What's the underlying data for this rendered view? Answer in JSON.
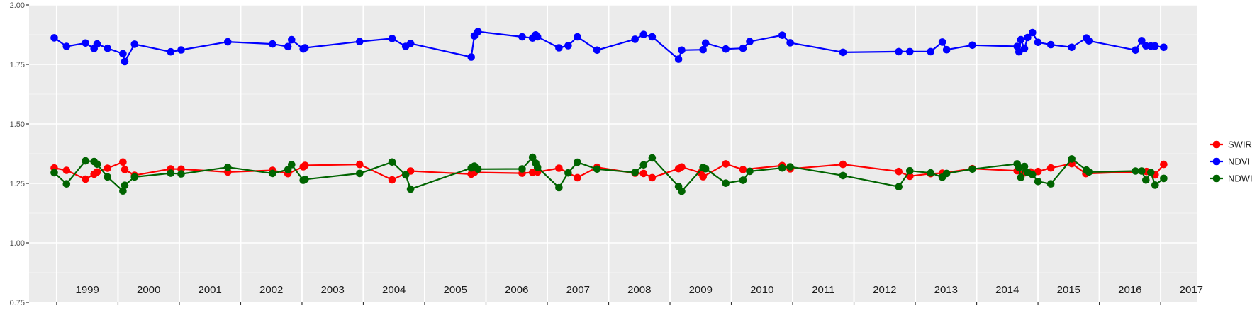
{
  "chart_data": {
    "type": "line",
    "title": "",
    "xlabel": "",
    "ylabel": "",
    "x_range": [
      1998.55,
      2017.6
    ],
    "ylim": [
      0.75,
      2.0
    ],
    "y_ticks": [
      "0.75",
      "1.00",
      "1.25",
      "1.50",
      "1.75",
      "2.00"
    ],
    "y_tick_values": [
      0.75,
      1.0,
      1.25,
      1.5,
      1.75,
      2.0
    ],
    "year_labels": [
      "1999",
      "2000",
      "2001",
      "2002",
      "2003",
      "2004",
      "2005",
      "2006",
      "2007",
      "2008",
      "2009",
      "2010",
      "2011",
      "2012",
      "2013",
      "2014",
      "2015",
      "2016",
      "2017"
    ],
    "grid": true,
    "legend_position": "right",
    "background": "#ebebeb",
    "series": [
      {
        "name": "SWIR",
        "color": "#ff0000",
        "x": [
          1998.96,
          1999.16,
          1999.47,
          1999.61,
          1999.66,
          1999.83,
          2000.08,
          2000.11,
          2000.27,
          2000.86,
          2001.03,
          2001.79,
          2002.52,
          2002.77,
          2003.02,
          2003.05,
          2003.94,
          2004.47,
          2004.77,
          2005.76,
          2005.81,
          2006.59,
          2006.76,
          2006.84,
          2007.19,
          2007.49,
          2007.81,
          2008.43,
          2008.57,
          2008.71,
          2009.14,
          2009.19,
          2009.5,
          2009.54,
          2009.91,
          2010.19,
          2010.83,
          2010.96,
          2011.82,
          2012.73,
          2012.91,
          2013.25,
          2013.44,
          2013.93,
          2014.66,
          2014.78,
          2014.88,
          2015.0,
          2015.21,
          2015.55,
          2015.78,
          2016.77,
          2016.91,
          2017.05
        ],
        "y": [
          1.315,
          1.305,
          1.268,
          1.289,
          1.298,
          1.314,
          1.34,
          1.308,
          1.284,
          1.311,
          1.31,
          1.298,
          1.305,
          1.291,
          1.32,
          1.326,
          1.33,
          1.265,
          1.302,
          1.289,
          1.296,
          1.293,
          1.296,
          1.298,
          1.314,
          1.274,
          1.318,
          1.293,
          1.292,
          1.274,
          1.312,
          1.319,
          1.295,
          1.278,
          1.332,
          1.308,
          1.325,
          1.311,
          1.33,
          1.3,
          1.28,
          1.291,
          1.293,
          1.312,
          1.303,
          1.294,
          1.298,
          1.3,
          1.315,
          1.333,
          1.291,
          1.3,
          1.286,
          1.33
        ]
      },
      {
        "name": "NDVI",
        "color": "#0000ff",
        "x": [
          1998.96,
          1999.16,
          1999.47,
          1999.61,
          1999.66,
          1999.83,
          2000.08,
          2000.11,
          2000.27,
          2000.86,
          2001.03,
          2001.79,
          2002.52,
          2002.77,
          2002.83,
          2003.02,
          2003.05,
          2003.94,
          2004.47,
          2004.69,
          2004.77,
          2005.76,
          2005.81,
          2005.87,
          2006.59,
          2006.76,
          2006.81,
          2006.84,
          2007.19,
          2007.34,
          2007.49,
          2007.81,
          2008.43,
          2008.57,
          2008.71,
          2009.14,
          2009.19,
          2009.54,
          2009.58,
          2009.91,
          2010.19,
          2010.3,
          2010.83,
          2010.96,
          2011.82,
          2012.73,
          2012.91,
          2013.25,
          2013.44,
          2013.51,
          2013.93,
          2014.66,
          2014.69,
          2014.72,
          2014.78,
          2014.83,
          2014.91,
          2015.0,
          2015.21,
          2015.55,
          2015.79,
          2015.83,
          2016.59,
          2016.69,
          2016.76,
          2016.84,
          2016.91,
          2017.05
        ],
        "y": [
          1.862,
          1.826,
          1.84,
          1.817,
          1.836,
          1.818,
          1.795,
          1.762,
          1.835,
          1.803,
          1.811,
          1.845,
          1.836,
          1.825,
          1.854,
          1.815,
          1.82,
          1.846,
          1.859,
          1.826,
          1.838,
          1.781,
          1.87,
          1.888,
          1.866,
          1.861,
          1.874,
          1.866,
          1.82,
          1.829,
          1.866,
          1.81,
          1.856,
          1.876,
          1.866,
          1.772,
          1.81,
          1.812,
          1.84,
          1.815,
          1.818,
          1.846,
          1.873,
          1.841,
          1.801,
          1.804,
          1.804,
          1.804,
          1.844,
          1.812,
          1.831,
          1.826,
          1.803,
          1.854,
          1.817,
          1.863,
          1.884,
          1.843,
          1.833,
          1.822,
          1.861,
          1.849,
          1.81,
          1.85,
          1.828,
          1.827,
          1.827,
          1.822
        ]
      },
      {
        "name": "NDWI",
        "color": "#006400",
        "x": [
          1998.96,
          1999.16,
          1999.47,
          1999.61,
          1999.66,
          1999.83,
          2000.08,
          2000.11,
          2000.27,
          2000.86,
          2001.03,
          2001.79,
          2002.52,
          2002.77,
          2002.83,
          2003.02,
          2003.05,
          2003.94,
          2004.47,
          2004.69,
          2004.77,
          2005.76,
          2005.81,
          2005.87,
          2006.59,
          2006.76,
          2006.81,
          2006.84,
          2007.19,
          2007.34,
          2007.49,
          2007.81,
          2008.43,
          2008.57,
          2008.71,
          2009.14,
          2009.19,
          2009.54,
          2009.58,
          2009.91,
          2010.19,
          2010.3,
          2010.83,
          2010.96,
          2011.82,
          2012.73,
          2012.91,
          2013.25,
          2013.44,
          2013.51,
          2013.93,
          2014.66,
          2014.69,
          2014.72,
          2014.78,
          2014.83,
          2014.91,
          2015.0,
          2015.21,
          2015.55,
          2015.79,
          2015.83,
          2016.59,
          2016.69,
          2016.76,
          2016.84,
          2016.91,
          2017.05
        ],
        "y": [
          1.295,
          1.248,
          1.345,
          1.342,
          1.331,
          1.277,
          1.218,
          1.242,
          1.277,
          1.293,
          1.29,
          1.318,
          1.292,
          1.308,
          1.329,
          1.263,
          1.267,
          1.292,
          1.34,
          1.286,
          1.226,
          1.315,
          1.323,
          1.31,
          1.311,
          1.36,
          1.335,
          1.318,
          1.232,
          1.294,
          1.339,
          1.31,
          1.296,
          1.328,
          1.357,
          1.237,
          1.217,
          1.317,
          1.312,
          1.251,
          1.263,
          1.301,
          1.315,
          1.32,
          1.283,
          1.236,
          1.303,
          1.294,
          1.276,
          1.292,
          1.31,
          1.332,
          1.316,
          1.275,
          1.321,
          1.296,
          1.287,
          1.258,
          1.248,
          1.353,
          1.306,
          1.298,
          1.302,
          1.302,
          1.264,
          1.296,
          1.243,
          1.271
        ]
      }
    ]
  }
}
